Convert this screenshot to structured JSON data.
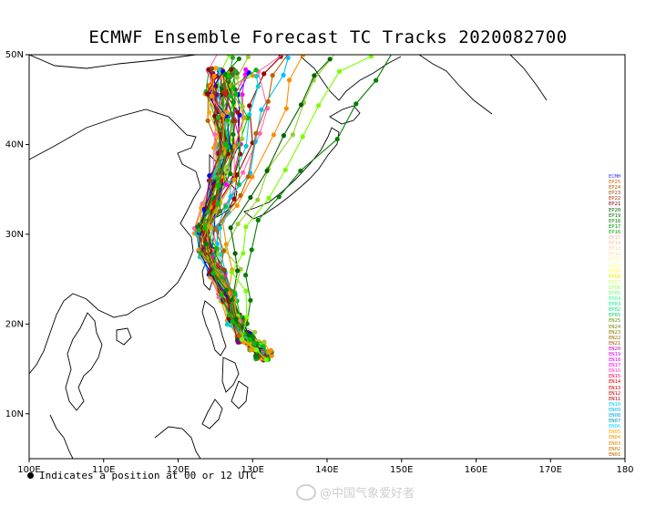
{
  "title": "ECMWF Ensemble Forecast TC Tracks 2020082700",
  "footnote": "Indicates a position at 00 or 12 UTC",
  "watermark": "@中国气象爱好者",
  "map": {
    "lon_range": [
      100,
      180
    ],
    "lat_range": [
      5,
      50
    ],
    "x_ticks": [
      "100E",
      "110E",
      "120E",
      "130E",
      "140E",
      "150E",
      "160E",
      "170E",
      "180"
    ],
    "y_ticks": [
      "10N",
      "20N",
      "30N",
      "40N",
      "50N"
    ],
    "track_colors": [
      "#0000ff",
      "#a00000",
      "#c06000",
      "#ff8c00",
      "#d4a017",
      "#006400",
      "#008000",
      "#22aa22",
      "#00c000",
      "#7cfc00",
      "#ff69b4",
      "#ff00ff",
      "#8b0000",
      "#ff0000",
      "#00bfff",
      "#00ced1",
      "#9acd32",
      "#ffa500",
      "#800080",
      "#556b2f",
      "#8b4513"
    ]
  },
  "legend": [
    {
      "label": "ECMH",
      "color": "#3333ff"
    },
    {
      "label": "EP25",
      "color": "#cc6600"
    },
    {
      "label": "EP24",
      "color": "#b35900"
    },
    {
      "label": "EP23",
      "color": "#994c00"
    },
    {
      "label": "EP22",
      "color": "#aa3300"
    },
    {
      "label": "EP21",
      "color": "#800000"
    },
    {
      "label": "EP20",
      "color": "#006600"
    },
    {
      "label": "EP19",
      "color": "#007700"
    },
    {
      "label": "EP18",
      "color": "#008800"
    },
    {
      "label": "EP17",
      "color": "#009900"
    },
    {
      "label": "EP16",
      "color": "#00aa00"
    },
    {
      "label": "EP15",
      "color": "#ffb0b0"
    },
    {
      "label": "EP14",
      "color": "#ffc0a0"
    },
    {
      "label": "EP13",
      "color": "#ffd0a0"
    },
    {
      "label": "EP12",
      "color": "#ffe0a0"
    },
    {
      "label": "EP11",
      "color": "#fff0a0"
    },
    {
      "label": "EP10",
      "color": "#ffff80"
    },
    {
      "label": "EP09",
      "color": "#ffff40"
    },
    {
      "label": "EP08",
      "color": "#eeee00"
    },
    {
      "label": "EP07",
      "color": "#ccff66"
    },
    {
      "label": "EP06",
      "color": "#99ff66"
    },
    {
      "label": "EP05",
      "color": "#66ff66"
    },
    {
      "label": "EP04",
      "color": "#33ff99"
    },
    {
      "label": "EP03",
      "color": "#00ee88"
    },
    {
      "label": "EP02",
      "color": "#00dd77"
    },
    {
      "label": "EP01",
      "color": "#00cc66"
    },
    {
      "label": "EN25",
      "color": "#669900"
    },
    {
      "label": "EN24",
      "color": "#778800"
    },
    {
      "label": "EN23",
      "color": "#887700"
    },
    {
      "label": "EN22",
      "color": "#996600"
    },
    {
      "label": "EN21",
      "color": "#aa5500"
    },
    {
      "label": "EN20",
      "color": "#cc00cc"
    },
    {
      "label": "EN19",
      "color": "#dd00dd"
    },
    {
      "label": "EN18",
      "color": "#ee00ee"
    },
    {
      "label": "EN17",
      "color": "#ff00ff"
    },
    {
      "label": "EN16",
      "color": "#ff33cc"
    },
    {
      "label": "EN15",
      "color": "#ff0066"
    },
    {
      "label": "EN14",
      "color": "#ee0000"
    },
    {
      "label": "EN13",
      "color": "#dd0000"
    },
    {
      "label": "EN12",
      "color": "#cc0000"
    },
    {
      "label": "EN11",
      "color": "#bb0000"
    },
    {
      "label": "EN10",
      "color": "#00ccff"
    },
    {
      "label": "EN09",
      "color": "#00bbee"
    },
    {
      "label": "EN08",
      "color": "#00aadd"
    },
    {
      "label": "EN07",
      "color": "#0099cc"
    },
    {
      "label": "EN06",
      "color": "#00ddff"
    },
    {
      "label": "EN05",
      "color": "#ffaa00"
    },
    {
      "label": "EN04",
      "color": "#ee9900"
    },
    {
      "label": "EN03",
      "color": "#dd8800"
    },
    {
      "label": "EN02",
      "color": "#cc7700"
    },
    {
      "label": "EN01",
      "color": "#bb6600"
    }
  ]
}
